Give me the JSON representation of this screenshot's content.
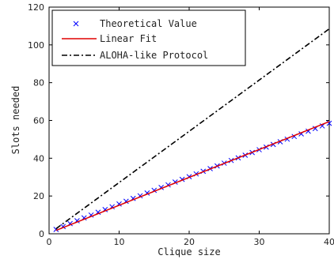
{
  "chart_data": {
    "type": "line",
    "xlabel": "Clique size",
    "ylabel": "Slots needed",
    "xlim": [
      0,
      40
    ],
    "ylim": [
      0,
      120
    ],
    "xticks": [
      0,
      10,
      20,
      30,
      40
    ],
    "yticks": [
      0,
      20,
      40,
      60,
      80,
      100,
      120
    ],
    "grid": false,
    "legend_position": "top-left",
    "series": [
      {
        "name": "Theoretical Value",
        "style": "markers-x",
        "color": "#0000ff",
        "x": [
          1,
          2,
          3,
          4,
          5,
          6,
          7,
          8,
          9,
          10,
          11,
          12,
          13,
          14,
          15,
          16,
          17,
          18,
          19,
          20,
          21,
          22,
          23,
          24,
          25,
          26,
          27,
          28,
          29,
          30,
          31,
          32,
          33,
          34,
          35,
          36,
          37,
          38,
          39,
          40
        ],
        "y": [
          2.3,
          3.8,
          5.4,
          6.9,
          8.4,
          9.9,
          11.4,
          12.8,
          14.3,
          15.8,
          17.2,
          18.7,
          20.1,
          21.6,
          23.0,
          24.5,
          25.9,
          27.4,
          28.8,
          30.2,
          31.7,
          33.1,
          34.5,
          35.9,
          37.4,
          38.8,
          40.2,
          41.6,
          43.0,
          44.5,
          45.9,
          47.3,
          48.7,
          50.1,
          51.5,
          52.9,
          54.3,
          55.7,
          57.1,
          58.5
        ]
      },
      {
        "name": "Linear Fit",
        "style": "line-solid",
        "color": "#e00000",
        "x": [
          1,
          40
        ],
        "y": [
          1.8,
          59.4
        ]
      },
      {
        "name": "ALOHA-like Protocol",
        "style": "line-dashdot",
        "color": "#000000",
        "x": [
          1,
          40
        ],
        "y": [
          2.7,
          108.5
        ]
      }
    ]
  }
}
